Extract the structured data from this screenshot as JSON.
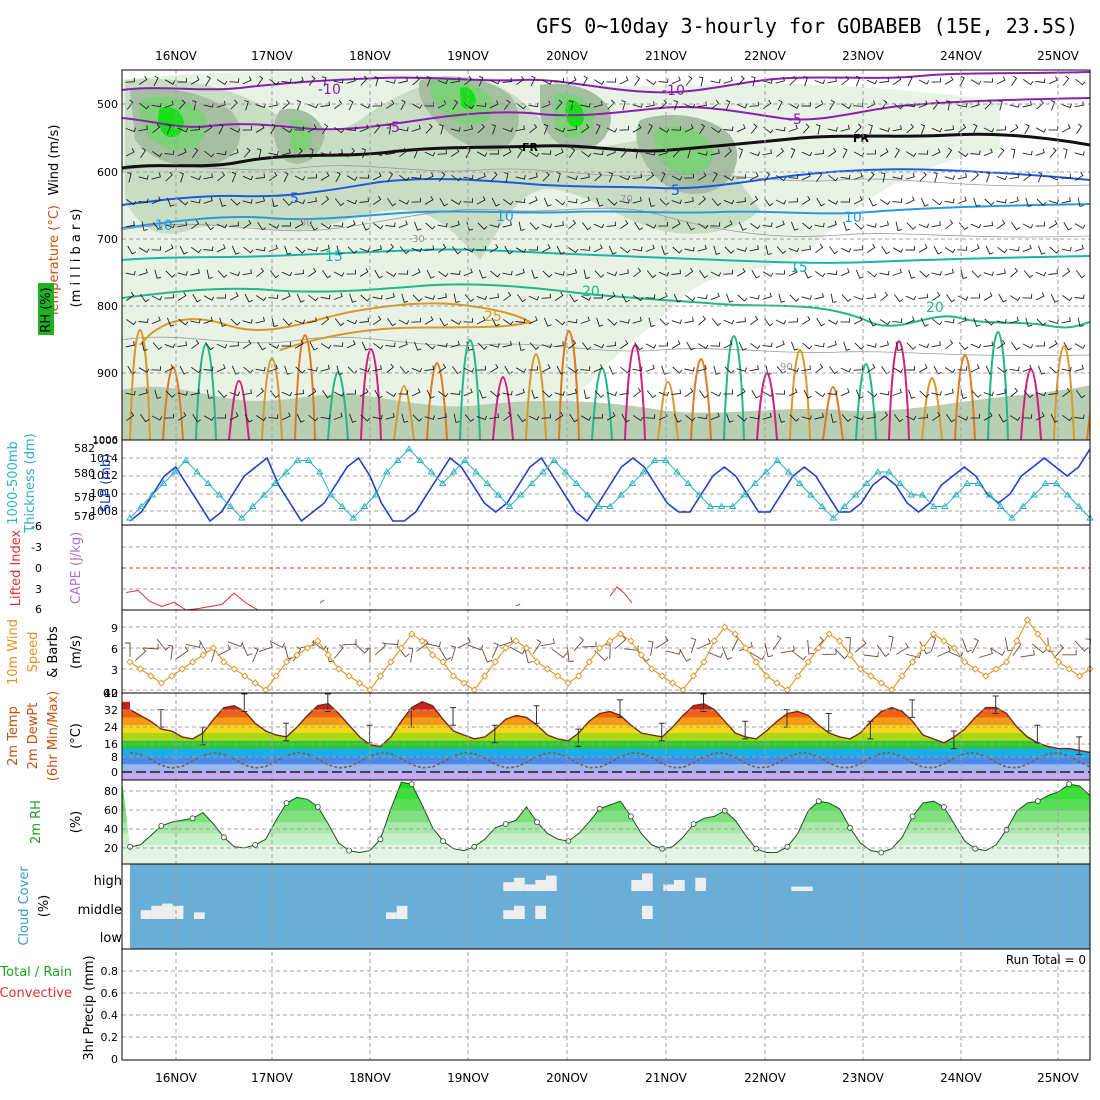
{
  "title": "GFS 0~10day 3-hourly for GOBABEB (15E, 23.5S)",
  "dates": [
    "16NOV",
    "17NOV",
    "18NOV",
    "19NOV",
    "20NOV",
    "21NOV",
    "22NOV",
    "23NOV",
    "24NOV",
    "25NOV"
  ],
  "colors": {
    "grid": "#b0b0b0",
    "temp_minus10": "#8a1fb0",
    "temp_minus5": "#8a1fb0",
    "temp_5": "#1c5adb",
    "temp_10": "#2a9adf",
    "temp_15": "#19b5a8",
    "temp_20": "#22b888",
    "temp_25": "#d89a2a",
    "rh_light": "#e6f2e3",
    "rh_mid": "#c7dcc2",
    "rh_dark": "#9fb89c",
    "rh_green": "#7fd07a",
    "rh_bright": "#14e014",
    "slp": "#1f3fc8",
    "thickness": "#2ab2c2",
    "lifted": "#e03030",
    "wind10": "#e0952a",
    "temp_fill": [
      "#c8241d",
      "#f06018",
      "#f49a18",
      "#f7d818",
      "#a8d818",
      "#30c830",
      "#18b0e8",
      "#4a8ae8",
      "#9ab8f0",
      "#c0a0f0"
    ],
    "rh2m": "#18c018",
    "cloud_bg": "#6aaed8",
    "cloud_bar": "#eeeeee"
  },
  "panels": {
    "upper": {
      "axis_label_wind": "Wind (m/s)",
      "axis_label_temp": "Temperature (°C)",
      "axis_label_rh": "RH (%)",
      "unit": "(m i l l i b a r s)",
      "yticks": [
        "500",
        "600",
        "700",
        "800",
        "900",
        "1000"
      ],
      "contour_labels": [
        "-10",
        "-5",
        "FR",
        "5",
        "10",
        "15",
        "20",
        "25",
        "-10",
        "-5",
        "FR",
        "5",
        "10",
        "15",
        "20",
        "10",
        "70",
        "90",
        "30",
        "30"
      ]
    },
    "slp": {
      "axis_label_thick": "1000-500mb",
      "axis_label_thick2": "Thickness (dm)",
      "axis_label_slp": "SLP (mb)",
      "left_ticks": [
        "582",
        "580",
        "578",
        "576"
      ],
      "right_ticks": [
        "1014",
        "1012",
        "1010",
        "1008",
        "1006"
      ]
    },
    "cape": {
      "axis_label_li": "Lifted Index",
      "axis_label_cape": "CAPE (J/kg)",
      "ticks": [
        "-6",
        "-3",
        "0",
        "3",
        "6"
      ]
    },
    "wind10": {
      "axis_label_1": "10m Wind",
      "axis_label_2": "Speed",
      "axis_label_3": "& Barbs",
      "unit": "(m/s)",
      "ticks": [
        "12",
        "9",
        "6",
        "3",
        "0"
      ]
    },
    "temp2m": {
      "axis_label_1": "2m Temp",
      "axis_label_2": "2m DewPt",
      "axis_label_3": "(6hr Min/Max)",
      "unit": "(°C)",
      "ticks": [
        "40",
        "32",
        "24",
        "16",
        "8",
        "0"
      ]
    },
    "rh2m": {
      "axis_label": "2m RH",
      "unit": "(%)",
      "ticks": [
        "80",
        "60",
        "40",
        "20"
      ]
    },
    "cloud": {
      "axis_label": "Cloud Cover",
      "unit": "(%)",
      "levels": [
        "high",
        "middle",
        "low"
      ]
    },
    "precip": {
      "axis_label_1": "Total / Rain",
      "axis_label_2": "Convective",
      "axis_label_3": "3hr Precip (mm)",
      "ticks": [
        "0.8",
        "0.6",
        "0.4",
        "0.2",
        "0"
      ],
      "run_total": "Run Total = 0"
    }
  },
  "chart_data": {
    "type": "meteogram",
    "x_unit": "3-hourly steps from 15NOV 15Z",
    "temp2m_c": [
      32,
      29,
      26,
      22,
      21,
      18,
      17,
      20,
      27,
      33,
      34,
      31,
      25,
      21,
      19,
      18,
      23,
      29,
      34,
      35,
      30,
      24,
      18,
      14,
      13,
      18,
      26,
      33,
      36,
      34,
      27,
      21,
      19,
      17,
      18,
      22,
      27,
      29,
      28,
      24,
      19,
      17,
      16,
      20,
      26,
      30,
      31,
      29,
      24,
      20,
      19,
      18,
      23,
      29,
      34,
      35,
      32,
      26,
      20,
      18,
      17,
      21,
      26,
      30,
      31,
      29,
      24,
      20,
      18,
      17,
      20,
      26,
      31,
      33,
      31,
      26,
      19,
      17,
      15,
      18,
      22,
      28,
      33,
      33,
      30,
      23,
      18,
      15,
      13,
      12,
      12,
      11,
      10
    ],
    "rh2m_pct": [
      16,
      18,
      28,
      38,
      42,
      44,
      46,
      52,
      40,
      26,
      16,
      15,
      18,
      24,
      44,
      62,
      68,
      66,
      58,
      40,
      20,
      12,
      10,
      12,
      24,
      56,
      84,
      82,
      60,
      36,
      22,
      14,
      12,
      16,
      24,
      36,
      40,
      44,
      58,
      42,
      30,
      24,
      22,
      30,
      42,
      56,
      60,
      64,
      48,
      30,
      18,
      14,
      16,
      26,
      40,
      46,
      48,
      54,
      44,
      28,
      14,
      10,
      10,
      16,
      30,
      54,
      64,
      62,
      56,
      36,
      20,
      12,
      10,
      14,
      26,
      48,
      62,
      64,
      58,
      40,
      22,
      14,
      12,
      18,
      34,
      54,
      62,
      64,
      70,
      74,
      82,
      80,
      70
    ],
    "wind10_ms": [
      4,
      3,
      2,
      1,
      2,
      3,
      4,
      5,
      6,
      4,
      3,
      2,
      1,
      0,
      2,
      4,
      5,
      6,
      7,
      5,
      3,
      2,
      1,
      0,
      2,
      4,
      6,
      8,
      7,
      5,
      4,
      2,
      1,
      0,
      2,
      4,
      6,
      7,
      6,
      4,
      3,
      2,
      1,
      2,
      4,
      6,
      7,
      8,
      7,
      5,
      3,
      2,
      1,
      0,
      2,
      4,
      7,
      9,
      8,
      6,
      4,
      2,
      1,
      0,
      2,
      4,
      6,
      8,
      7,
      5,
      3,
      2,
      1,
      0,
      2,
      4,
      6,
      8,
      7,
      6,
      4,
      3,
      2,
      3,
      4,
      7,
      10,
      8,
      6,
      4,
      3,
      2,
      3
    ],
    "slp_mb": [
      1007,
      1008,
      1010,
      1012,
      1013,
      1011,
      1009,
      1007,
      1008,
      1010,
      1012,
      1013,
      1014,
      1011,
      1009,
      1007,
      1008,
      1009,
      1011,
      1013,
      1014,
      1012,
      1009,
      1007,
      1007,
      1008,
      1010,
      1012,
      1014,
      1013,
      1011,
      1009,
      1008,
      1009,
      1011,
      1013,
      1014,
      1012,
      1010,
      1008,
      1007,
      1009,
      1011,
      1013,
      1014,
      1013,
      1011,
      1009,
      1008,
      1008,
      1010,
      1012,
      1013,
      1012,
      1010,
      1008,
      1008,
      1010,
      1012,
      1013,
      1012,
      1010,
      1008,
      1008,
      1009,
      1011,
      1012,
      1011,
      1009,
      1008,
      1009,
      1011,
      1012,
      1013,
      1012,
      1010,
      1009,
      1010,
      1012,
      1013,
      1014,
      1013,
      1012,
      1013,
      1015
    ],
    "thickness_dm": [
      576,
      577,
      578,
      579,
      580,
      581,
      580,
      579,
      578,
      577,
      576,
      577,
      578,
      579,
      580,
      581,
      581,
      580,
      578,
      577,
      576,
      577,
      578,
      580,
      581,
      582,
      581,
      580,
      579,
      580,
      581,
      580,
      579,
      578,
      577,
      578,
      579,
      580,
      581,
      580,
      579,
      578,
      577,
      577,
      578,
      579,
      580,
      581,
      581,
      580,
      579,
      578,
      577,
      577,
      577,
      578,
      579,
      580,
      581,
      580,
      579,
      578,
      577,
      576,
      577,
      578,
      579,
      580,
      580,
      579,
      578,
      578,
      577,
      577,
      578,
      579,
      579,
      578,
      577,
      576,
      577,
      578,
      579,
      579,
      578,
      577,
      576
    ],
    "lifted_index": [
      3.5,
      3.2,
      4.8,
      5.5,
      4.9,
      6,
      5.8,
      5.2,
      3.6,
      5,
      6
    ],
    "cloud_high": [
      0,
      0,
      0,
      0,
      0,
      0,
      0,
      0,
      0,
      0,
      0,
      0,
      0,
      0,
      0,
      0,
      0,
      0,
      0,
      0,
      0,
      0,
      0,
      0,
      0,
      0,
      0,
      0,
      0,
      0,
      0,
      0,
      0,
      0,
      0,
      40,
      60,
      30,
      50,
      70,
      0,
      0,
      0,
      0,
      0,
      0,
      0,
      50,
      80,
      0,
      30,
      50,
      0,
      60,
      0,
      0,
      0,
      0,
      0,
      0,
      0,
      0,
      20,
      20,
      0,
      0,
      0,
      0,
      0,
      0,
      0,
      0,
      0,
      0,
      0,
      0,
      0,
      0,
      0,
      0,
      0,
      0,
      0,
      0,
      0,
      0,
      0,
      0,
      0,
      0
    ],
    "cloud_middle": [
      0,
      40,
      60,
      70,
      60,
      0,
      30,
      0,
      0,
      0,
      0,
      0,
      0,
      0,
      0,
      0,
      0,
      0,
      0,
      0,
      0,
      0,
      0,
      0,
      30,
      60,
      0,
      0,
      0,
      0,
      0,
      0,
      0,
      0,
      0,
      40,
      60,
      0,
      60,
      0,
      0,
      0,
      0,
      0,
      0,
      0,
      0,
      0,
      60,
      0,
      0,
      0,
      0,
      0,
      0,
      0,
      0,
      0,
      0,
      0,
      0,
      0,
      0,
      0,
      0,
      0,
      0,
      0,
      0,
      0,
      0,
      0,
      0,
      0,
      0,
      0,
      0,
      0,
      0,
      0,
      0,
      0,
      0,
      0,
      0,
      0,
      0,
      0,
      0,
      0
    ],
    "precip_mm": []
  }
}
